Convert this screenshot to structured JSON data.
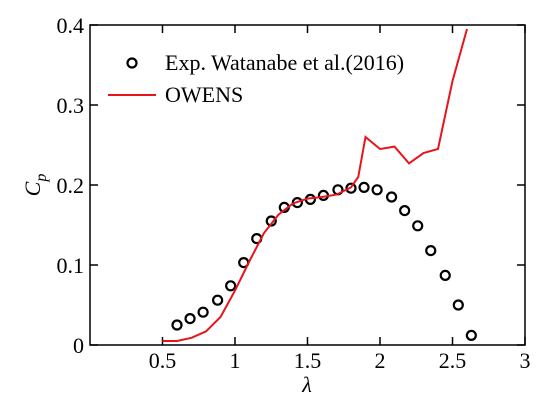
{
  "chart_data": {
    "type": "scatter-line",
    "xlabel": "λ",
    "ylabel": {
      "text": "C",
      "subscript": "p"
    },
    "xlim": [
      0,
      3
    ],
    "xticks": [
      0.5,
      1,
      1.5,
      2,
      2.5,
      3
    ],
    "ylim": [
      0,
      0.4
    ],
    "yticks": [
      0,
      0.1,
      0.2,
      0.3,
      0.4
    ],
    "legend": "upper left",
    "series": [
      {
        "name": "Exp. Watanabe et al.(2016)",
        "color": "#000000",
        "marker": "circle",
        "x": [
          0.6,
          0.69,
          0.78,
          0.88,
          0.97,
          1.06,
          1.15,
          1.25,
          1.34,
          1.43,
          1.52,
          1.61,
          1.71,
          1.8,
          1.89,
          1.98,
          2.08,
          2.17,
          2.26,
          2.35,
          2.45,
          2.54,
          2.63
        ],
        "values": [
          0.025,
          0.033,
          0.041,
          0.056,
          0.074,
          0.103,
          0.133,
          0.155,
          0.172,
          0.178,
          0.182,
          0.187,
          0.194,
          0.196,
          0.197,
          0.194,
          0.185,
          0.168,
          0.149,
          0.118,
          0.087,
          0.05,
          0.012
        ]
      },
      {
        "name": "OWENS",
        "color": "#e8141c",
        "marker": "line",
        "x": [
          0.5,
          0.6,
          0.7,
          0.8,
          0.9,
          1.0,
          1.1,
          1.2,
          1.3,
          1.4,
          1.5,
          1.6,
          1.7,
          1.8,
          1.85,
          1.9,
          2.0,
          2.1,
          2.2,
          2.3,
          2.4,
          2.5,
          2.6
        ],
        "values": [
          0.005,
          0.005,
          0.009,
          0.017,
          0.035,
          0.068,
          0.105,
          0.14,
          0.163,
          0.177,
          0.183,
          0.185,
          0.188,
          0.197,
          0.21,
          0.26,
          0.245,
          0.248,
          0.227,
          0.24,
          0.245,
          0.33,
          0.395
        ]
      }
    ]
  }
}
